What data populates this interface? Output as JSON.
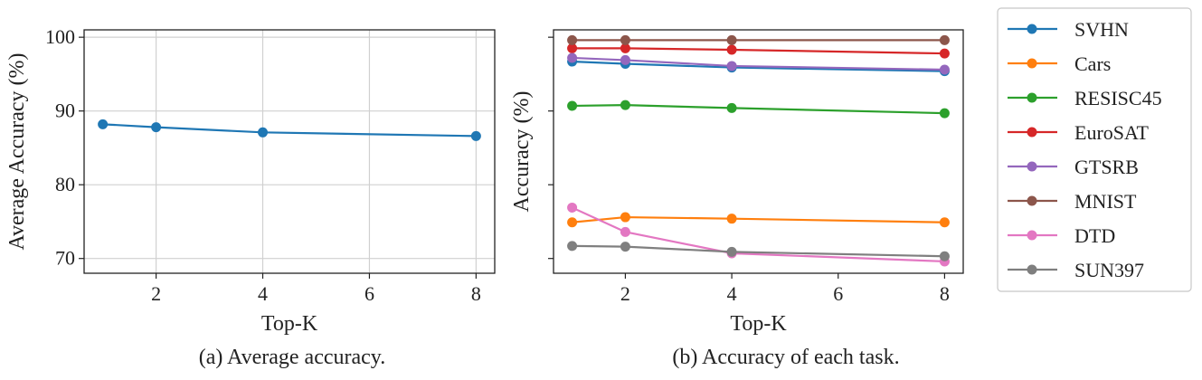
{
  "chart_data": [
    {
      "type": "line",
      "caption": "(a) Average accuracy.",
      "xlabel": "Top-K",
      "ylabel": "Average Accuracy (%)",
      "xlim": [
        0.65,
        8.35
      ],
      "ylim": [
        68,
        101
      ],
      "xticks": [
        2,
        4,
        6,
        8
      ],
      "yticks": [
        70,
        80,
        90,
        100
      ],
      "grid": true,
      "x": [
        1,
        2,
        4,
        8
      ],
      "series": [
        {
          "values": [
            88.2,
            87.8,
            87.1,
            86.6
          ],
          "color": "#1f77b4"
        }
      ]
    },
    {
      "type": "line",
      "caption": "(b) Accuracy of each task.",
      "xlabel": "Top-K",
      "ylabel": "Accuracy (%)",
      "xlim": [
        0.65,
        8.35
      ],
      "ylim": [
        68,
        101
      ],
      "xticks": [
        2,
        4,
        6,
        8
      ],
      "yticks": [
        70,
        80,
        90,
        100
      ],
      "ytick_labels_shown": false,
      "grid": false,
      "legend": "outside-right",
      "x": [
        1,
        2,
        4,
        8
      ],
      "series": [
        {
          "name": "SVHN",
          "color": "#1f77b4",
          "values": [
            96.7,
            96.4,
            95.9,
            95.4
          ]
        },
        {
          "name": "Cars",
          "color": "#ff7f0e",
          "values": [
            74.9,
            75.6,
            75.4,
            74.9
          ]
        },
        {
          "name": "RESISC45",
          "color": "#2ca02c",
          "values": [
            90.7,
            90.8,
            90.4,
            89.7
          ]
        },
        {
          "name": "EuroSAT",
          "color": "#d62728",
          "values": [
            98.5,
            98.5,
            98.3,
            97.8
          ]
        },
        {
          "name": "GTSRB",
          "color": "#9467bd",
          "values": [
            97.2,
            96.9,
            96.1,
            95.6
          ]
        },
        {
          "name": "MNIST",
          "color": "#8c564b",
          "values": [
            99.6,
            99.6,
            99.6,
            99.6
          ]
        },
        {
          "name": "DTD",
          "color": "#e377c2",
          "values": [
            76.9,
            73.6,
            70.7,
            69.6
          ]
        },
        {
          "name": "SUN397",
          "color": "#7f7f7f",
          "values": [
            71.7,
            71.6,
            70.9,
            70.3
          ]
        }
      ]
    }
  ]
}
